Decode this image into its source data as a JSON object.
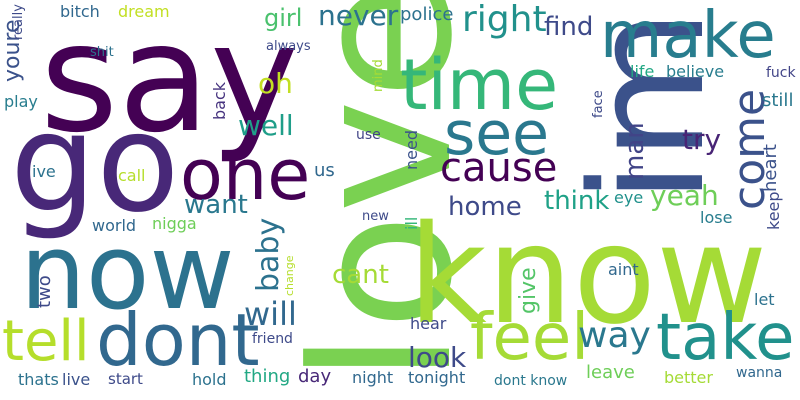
{
  "words": [
    {
      "text": "love",
      "color": "#7ad151"
    },
    {
      "text": "know",
      "color": "#a5db36"
    },
    {
      "text": "say",
      "color": "#440154"
    },
    {
      "text": "go",
      "color": "#482878"
    },
    {
      "text": "im",
      "color": "#3b528b"
    },
    {
      "text": "now",
      "color": "#2c728e"
    },
    {
      "text": "make",
      "color": "#287d8e"
    },
    {
      "text": "time",
      "color": "#35b779"
    },
    {
      "text": "one",
      "color": "#440154"
    },
    {
      "text": "dont",
      "color": "#31688e"
    },
    {
      "text": "see",
      "color": "#2a788e"
    },
    {
      "text": "take",
      "color": "#21918c"
    },
    {
      "text": "feel",
      "color": "#a5db36"
    },
    {
      "text": "tell",
      "color": "#b5de2b"
    },
    {
      "text": "cause",
      "color": "#440154"
    },
    {
      "text": "come",
      "color": "#3b528b"
    },
    {
      "text": "right",
      "color": "#21918c"
    },
    {
      "text": "way",
      "color": "#2a788e"
    },
    {
      "text": "will",
      "color": "#31688e"
    },
    {
      "text": "baby",
      "color": "#2c728e"
    },
    {
      "text": "well",
      "color": "#1f9e89"
    },
    {
      "text": "never",
      "color": "#2c728e"
    },
    {
      "text": "home",
      "color": "#3e4a89"
    },
    {
      "text": "think",
      "color": "#1fa187"
    },
    {
      "text": "yeah",
      "color": "#6ece58"
    },
    {
      "text": "want",
      "color": "#2a788e"
    },
    {
      "text": "look",
      "color": "#3e4a89"
    },
    {
      "text": "cant",
      "color": "#a5db36"
    },
    {
      "text": "girl",
      "color": "#4ac16d"
    },
    {
      "text": "oh",
      "color": "#c2df23"
    },
    {
      "text": "try",
      "color": "#482475"
    },
    {
      "text": "man",
      "color": "#414487"
    },
    {
      "text": "find",
      "color": "#3e4a89"
    },
    {
      "text": "give",
      "color": "#54c568"
    },
    {
      "text": "youre",
      "color": "#3b528b"
    },
    {
      "text": "heart",
      "color": "#3b528b"
    },
    {
      "text": "keep",
      "color": "#3e4a89"
    },
    {
      "text": "police",
      "color": "#2c728e"
    },
    {
      "text": "life",
      "color": "#22a884"
    },
    {
      "text": "believe",
      "color": "#287d8e"
    },
    {
      "text": "fuck",
      "color": "#414487"
    },
    {
      "text": "still",
      "color": "#2a788e"
    },
    {
      "text": "play",
      "color": "#287d8e"
    },
    {
      "text": "really",
      "color": "#3e4a89"
    },
    {
      "text": "bitch",
      "color": "#31688e"
    },
    {
      "text": "dream",
      "color": "#c2df23"
    },
    {
      "text": "back",
      "color": "#46337f"
    },
    {
      "text": "shit",
      "color": "#2c728e"
    },
    {
      "text": "always",
      "color": "#3e4a89"
    },
    {
      "text": "mind",
      "color": "#a5db36"
    },
    {
      "text": "use",
      "color": "#414487"
    },
    {
      "text": "need",
      "color": "#3b528b"
    },
    {
      "text": "face",
      "color": "#3e4a89"
    },
    {
      "text": "ive",
      "color": "#2c728e"
    },
    {
      "text": "call",
      "color": "#b5de2b"
    },
    {
      "text": "us",
      "color": "#31688e"
    },
    {
      "text": "eye",
      "color": "#21918c"
    },
    {
      "text": "lose",
      "color": "#287d8e"
    },
    {
      "text": "world",
      "color": "#31688e"
    },
    {
      "text": "nigga",
      "color": "#6ece58"
    },
    {
      "text": "new",
      "color": "#3e4a89"
    },
    {
      "text": "ill",
      "color": "#35b779"
    },
    {
      "text": "change",
      "color": "#b5de2b"
    },
    {
      "text": "aint",
      "color": "#31688e"
    },
    {
      "text": "let",
      "color": "#2c728e"
    },
    {
      "text": "two",
      "color": "#3e4a89"
    },
    {
      "text": "hear",
      "color": "#3e4a89"
    },
    {
      "text": "friend",
      "color": "#3e4a89"
    },
    {
      "text": "thats",
      "color": "#2c728e"
    },
    {
      "text": "live",
      "color": "#3b528b"
    },
    {
      "text": "start",
      "color": "#3e4a89"
    },
    {
      "text": "hold",
      "color": "#2c728e"
    },
    {
      "text": "thing",
      "color": "#22a884"
    },
    {
      "text": "day",
      "color": "#482878"
    },
    {
      "text": "night",
      "color": "#31688e"
    },
    {
      "text": "tonight",
      "color": "#31688e"
    },
    {
      "text": "dont know",
      "color": "#2a788e"
    },
    {
      "text": "leave",
      "color": "#6ece58"
    },
    {
      "text": "better",
      "color": "#a5db36"
    },
    {
      "text": "wanna",
      "color": "#31688e"
    }
  ]
}
